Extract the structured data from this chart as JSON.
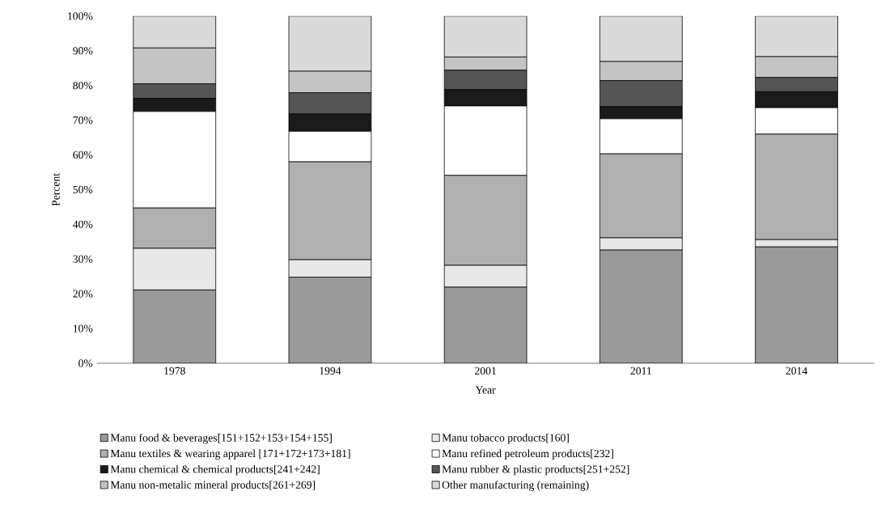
{
  "chart_data": {
    "type": "bar",
    "stacked": true,
    "xlabel": "Year",
    "ylabel": "Percent",
    "categories": [
      "1978",
      "1994",
      "2001",
      "2011",
      "2014"
    ],
    "series": [
      {
        "name": "Manu food & beverages[151+152+153+154+155]",
        "color": "#9a9a9a",
        "values": [
          21.1,
          24.8,
          21.9,
          32.6,
          33.5
        ]
      },
      {
        "name": "Manu tobacco products[160]",
        "color": "#e8e8e8",
        "values": [
          12.0,
          5.0,
          6.3,
          3.5,
          2.1
        ]
      },
      {
        "name": "Manu textiles & wearing apparel [171+172+173+181]",
        "color": "#b0b0b0",
        "values": [
          11.6,
          28.2,
          25.9,
          24.2,
          30.4
        ]
      },
      {
        "name": "Manu refined petroleum products[232]",
        "color": "#ffffff",
        "values": [
          27.8,
          8.8,
          20.0,
          10.1,
          7.6
        ]
      },
      {
        "name": "Manu chemical & chemical products[241+242]",
        "color": "#1a1a1a",
        "values": [
          3.8,
          5.0,
          4.7,
          3.5,
          4.6
        ]
      },
      {
        "name": "Manu rubber & plastic products[251+252]",
        "color": "#555555",
        "values": [
          4.2,
          6.1,
          5.6,
          7.5,
          4.1
        ]
      },
      {
        "name": "Manu non-metalic mineral products[261+269]",
        "color": "#c4c4c4",
        "values": [
          10.3,
          6.2,
          3.8,
          5.5,
          6.0
        ]
      },
      {
        "name": "Other manufacturing (remaining)",
        "color": "#dadada",
        "values": [
          9.2,
          15.9,
          11.8,
          13.1,
          11.7
        ]
      }
    ],
    "ylim": [
      0,
      100
    ],
    "yticks": [
      {
        "value": 0,
        "label": "0%"
      },
      {
        "value": 10,
        "label": "10%"
      },
      {
        "value": 20,
        "label": "20%"
      },
      {
        "value": 30,
        "label": "30%"
      },
      {
        "value": 40,
        "label": "40%"
      },
      {
        "value": 50,
        "label": "50%"
      },
      {
        "value": 60,
        "label": "60%"
      },
      {
        "value": 70,
        "label": "70%"
      },
      {
        "value": 80,
        "label": "80%"
      },
      {
        "value": 90,
        "label": "90%"
      },
      {
        "value": 100,
        "label": "100%"
      }
    ],
    "legend": "bottom"
  }
}
